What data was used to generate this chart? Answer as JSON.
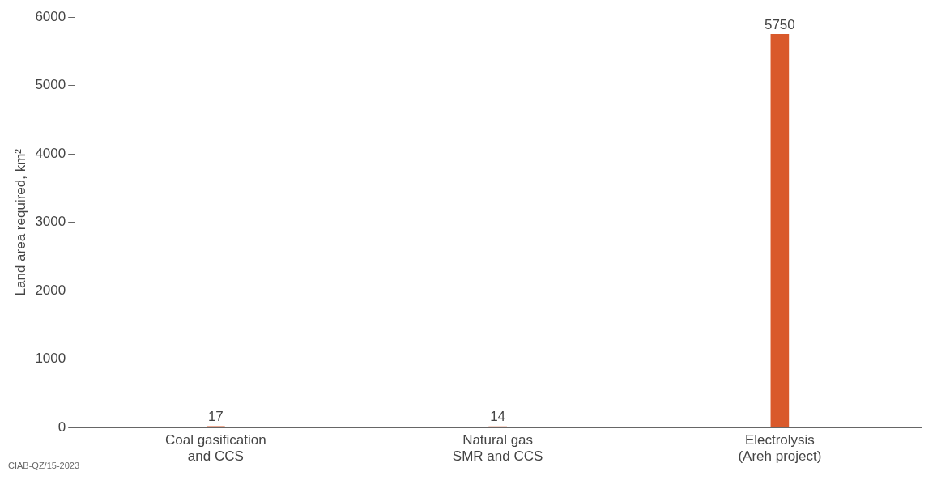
{
  "chart_data": {
    "type": "bar",
    "ylabel": "Land area required, km²",
    "categories": [
      "Coal gasification\nand CCS",
      "Natural gas\nSMR and CCS",
      "Electrolysis\n(Areh project)"
    ],
    "values": [
      17,
      14,
      5750
    ],
    "color": "#d9592b",
    "ylim": [
      0,
      6000
    ],
    "yticks": [
      0,
      1000,
      2000,
      3000,
      4000,
      5000,
      6000
    ],
    "grid": false,
    "legend": false,
    "data_labels": true,
    "annotations": [
      "CIAB-QZ/15-2023"
    ]
  }
}
